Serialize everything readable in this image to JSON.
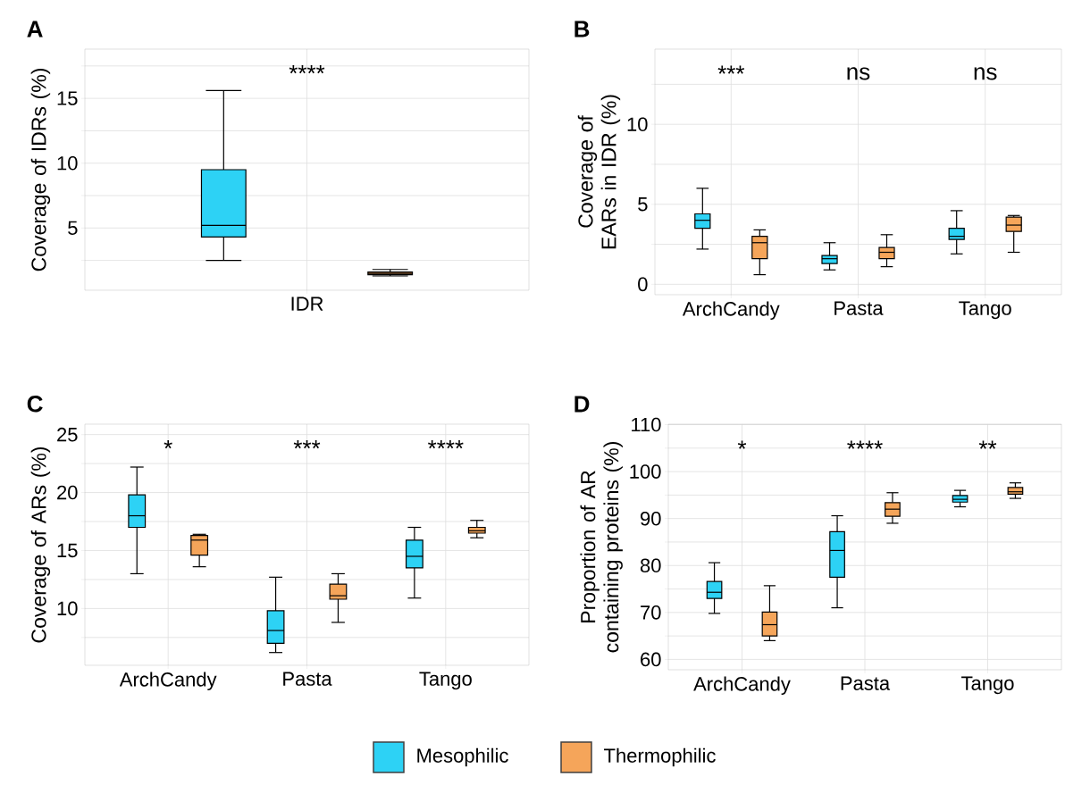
{
  "chart_data": [
    {
      "type": "box",
      "title": "A",
      "ylabel": "Coverage of IDRs (%)",
      "categories": [
        "IDR"
      ],
      "ylim": [
        0.2,
        18.8
      ],
      "yticks": [
        {
          "value": 2.5,
          "label": null
        },
        5,
        {
          "value": 7.5,
          "label": null
        },
        10,
        {
          "value": 12.5,
          "label": null
        },
        15,
        {
          "value": 17.5,
          "label": null
        }
      ],
      "grid": true,
      "legend": "bottom",
      "annotations": [
        "****"
      ],
      "series": [
        {
          "name": "Mesophilic",
          "color": "#2dd2f5",
          "boxes": [
            {
              "low": 2.5,
              "q1": 4.3,
              "median": 5.2,
              "q3": 9.5,
              "high": 15.6
            }
          ]
        },
        {
          "name": "Thermophilic",
          "color": "#f5a55a",
          "boxes": [
            {
              "low": 1.3,
              "q1": 1.4,
              "median": 1.5,
              "q3": 1.6,
              "high": 1.8
            }
          ]
        }
      ]
    },
    {
      "type": "box",
      "title": "B",
      "ylabel": "Coverage of EARs in IDR (%)",
      "categories": [
        "ArchCandy",
        "Pasta",
        "Tango"
      ],
      "ylim": [
        -0.65,
        14.7
      ],
      "yticks": [
        0,
        {
          "value": 2.5,
          "label": null
        },
        5,
        {
          "value": 7.5,
          "label": null
        },
        10,
        {
          "value": 12.5,
          "label": null
        }
      ],
      "grid": true,
      "annotations": [
        "***",
        "ns",
        "ns"
      ],
      "series": [
        {
          "color": "#2dd2f5",
          "boxes": [
            {
              "low": 2.2,
              "q1": 3.5,
              "median": 4.0,
              "q3": 4.4,
              "high": 6.0
            },
            {
              "low": 0.9,
              "q1": 1.3,
              "median": 1.6,
              "q3": 1.8,
              "high": 2.6
            },
            {
              "low": 1.9,
              "q1": 2.8,
              "median": 3.0,
              "q3": 3.5,
              "high": 4.6
            }
          ]
        },
        {
          "color": "#f5a55a",
          "boxes": [
            {
              "low": 0.6,
              "q1": 1.6,
              "median": 2.6,
              "q3": 3.0,
              "high": 3.4
            },
            {
              "low": 1.1,
              "q1": 1.6,
              "median": 2.0,
              "q3": 2.3,
              "high": 3.1
            },
            {
              "low": 2.0,
              "q1": 3.3,
              "median": 3.7,
              "q3": 4.2,
              "high": 4.3
            }
          ]
        }
      ]
    },
    {
      "type": "box",
      "title": "C",
      "ylabel": "Coverage of ARs (%)",
      "categories": [
        "ArchCandy",
        "Pasta",
        "Tango"
      ],
      "ylim": [
        5.1,
        25.9
      ],
      "yticks": [
        {
          "value": 7.5,
          "label": null
        },
        10,
        {
          "value": 12.5,
          "label": null
        },
        15,
        {
          "value": 17.5,
          "label": null
        },
        20,
        {
          "value": 22.5,
          "label": null
        },
        25
      ],
      "grid": true,
      "annotations": [
        "*",
        "***",
        "****"
      ],
      "series": [
        {
          "color": "#2dd2f5",
          "boxes": [
            {
              "low": 13.0,
              "q1": 17.0,
              "median": 18.0,
              "q3": 19.8,
              "high": 22.2
            },
            {
              "low": 6.2,
              "q1": 7.0,
              "median": 8.1,
              "q3": 9.8,
              "high": 12.7
            },
            {
              "low": 10.9,
              "q1": 13.5,
              "median": 14.5,
              "q3": 15.9,
              "high": 17.0
            }
          ]
        },
        {
          "color": "#f5a55a",
          "boxes": [
            {
              "low": 13.6,
              "q1": 14.6,
              "median": 15.9,
              "q3": 16.3,
              "high": 16.4
            },
            {
              "low": 8.8,
              "q1": 10.8,
              "median": 11.1,
              "q3": 12.1,
              "high": 13.0
            },
            {
              "low": 16.1,
              "q1": 16.5,
              "median": 16.7,
              "q3": 17.0,
              "high": 17.6
            }
          ]
        }
      ]
    },
    {
      "type": "box",
      "title": "D",
      "ylabel": "Proportion of AR containing proteins (%)",
      "categories": [
        "ArchCandy",
        "Pasta",
        "Tango"
      ],
      "ylim": [
        57.8,
        110.1
      ],
      "yticks": [
        60,
        {
          "value": 65,
          "label": null
        },
        70,
        {
          "value": 75,
          "label": null
        },
        80,
        {
          "value": 85,
          "label": null
        },
        90,
        {
          "value": 95,
          "label": null
        },
        100,
        {
          "value": 105,
          "label": null
        },
        110
      ],
      "grid": true,
      "annotations": [
        "*",
        "****",
        "**"
      ],
      "series": [
        {
          "color": "#2dd2f5",
          "boxes": [
            {
              "low": 69.8,
              "q1": 73.0,
              "median": 74.3,
              "q3": 76.6,
              "high": 80.6
            },
            {
              "low": 71.0,
              "q1": 77.5,
              "median": 83.2,
              "q3": 87.2,
              "high": 90.6
            },
            {
              "low": 92.5,
              "q1": 93.5,
              "median": 94.1,
              "q3": 94.9,
              "high": 96.0
            }
          ]
        },
        {
          "color": "#f5a55a",
          "boxes": [
            {
              "low": 64.0,
              "q1": 65.0,
              "median": 67.4,
              "q3": 70.1,
              "high": 75.7
            },
            {
              "low": 89.0,
              "q1": 90.5,
              "median": 92.0,
              "q3": 93.4,
              "high": 95.5
            },
            {
              "low": 94.3,
              "q1": 95.2,
              "median": 95.7,
              "q3": 96.6,
              "high": 97.6
            }
          ]
        }
      ]
    }
  ]
}
